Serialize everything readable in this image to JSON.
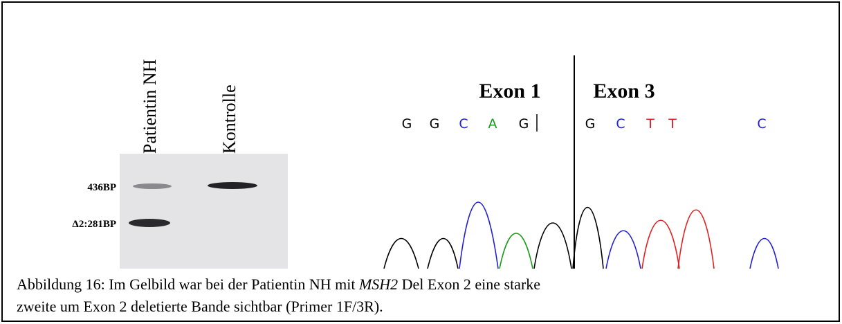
{
  "figure": {
    "gel": {
      "lanes": [
        "Patientin NH",
        "Kontrolle"
      ],
      "bands": [
        "436BP",
        "Δ2:281BP"
      ]
    },
    "chromatogram": {
      "exons": [
        "Exon 1",
        "Exon 3"
      ],
      "bases": [
        "G",
        "G",
        "C",
        "A",
        "G",
        "G",
        "C",
        "T",
        "T",
        "C"
      ]
    },
    "caption": {
      "before": "Abbildung 16: Im Gelbild war bei der Patientin NH mit ",
      "gene": "MSH2",
      "after": " Del Exon 2 eine starke",
      "line2": "zweite um Exon 2 deletierte Bande sichtbar (Primer 1F/3R)."
    }
  }
}
